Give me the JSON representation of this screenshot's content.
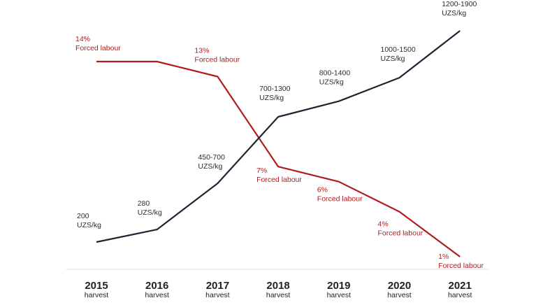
{
  "chart_data": {
    "type": "line",
    "x": [
      "2015",
      "2016",
      "2017",
      "2018",
      "2019",
      "2020",
      "2021"
    ],
    "x_sub": [
      "harvest",
      "harvest",
      "harvest",
      "harvest",
      "harvest",
      "harvest",
      "harvest"
    ],
    "series": [
      {
        "key": "price",
        "color": "#1e2433",
        "values": [
          200,
          280,
          575,
          1000,
          1100,
          1250,
          1550
        ],
        "labels": [
          [
            "200",
            "UZS/kg"
          ],
          [
            "280",
            "UZS/kg"
          ],
          [
            "450-700",
            "UZS/kg"
          ],
          [
            "700-1300",
            "UZS/kg"
          ],
          [
            "800-1400",
            "UZS/kg"
          ],
          [
            "1000-1500",
            "UZS/kg"
          ],
          [
            "1200-1900",
            "UZS/kg"
          ]
        ]
      },
      {
        "key": "forced_labour",
        "color": "#b01c1c",
        "values": [
          14,
          14,
          13,
          7,
          6,
          4,
          1
        ],
        "labels": [
          [
            "14%",
            "Forced labour"
          ],
          [],
          [
            "13%",
            "Forced labour"
          ],
          [
            "7%",
            "Forced labour"
          ],
          [
            "6%",
            "Forced labour"
          ],
          [
            "4%",
            "Forced labour"
          ],
          [
            "1%",
            "Forced labour"
          ]
        ]
      }
    ],
    "grid": false,
    "legend": "none"
  }
}
